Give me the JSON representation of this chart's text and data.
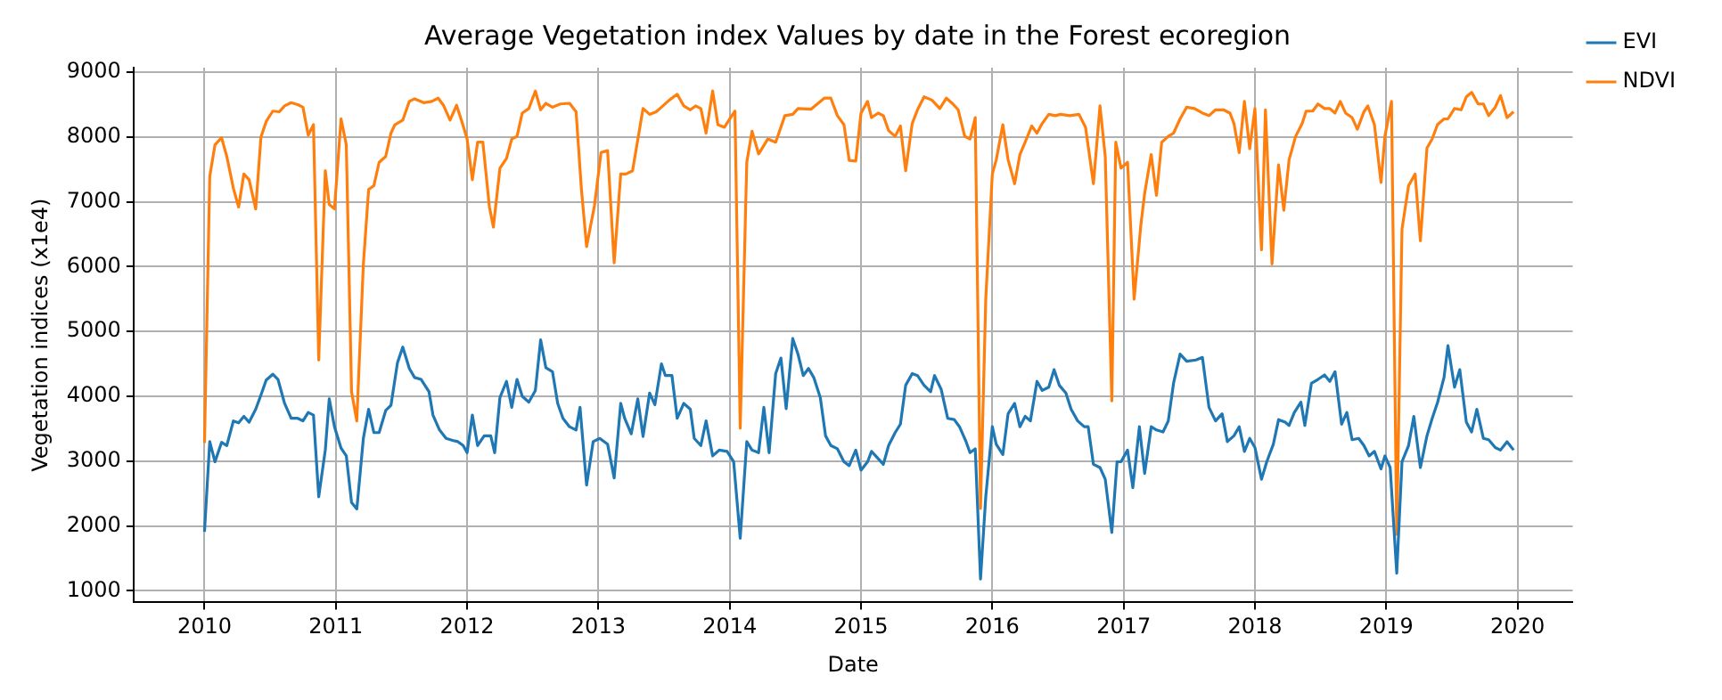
{
  "chart_data": {
    "type": "line",
    "title": "Average Vegetation index Values by date in the Forest ecoregion",
    "xlabel": "Date",
    "ylabel": "Vegetation indices (x1e4)",
    "xlim": [
      2009.46,
      2020.42
    ],
    "xticks": [
      2010,
      2011,
      2012,
      2013,
      2014,
      2015,
      2016,
      2017,
      2018,
      2019,
      2020
    ],
    "ylim": [
      820,
      9070
    ],
    "yticks": [
      1000,
      2000,
      3000,
      4000,
      5000,
      6000,
      7000,
      8000,
      9000
    ],
    "grid": true,
    "legend": "right",
    "series": [
      {
        "name": "EVI",
        "color": "#1f77b4",
        "x": [
          2010.0,
          2010.04,
          2010.08,
          2010.13,
          2010.17,
          2010.22,
          2010.26,
          2010.3,
          2010.34,
          2010.39,
          2010.43,
          2010.47,
          2010.52,
          2010.56,
          2010.61,
          2010.66,
          2010.71,
          2010.75,
          2010.79,
          2010.83,
          2010.87,
          2010.92,
          2010.95,
          2010.99,
          2011.04,
          2011.08,
          2011.12,
          2011.16,
          2011.21,
          2011.25,
          2011.29,
          2011.33,
          2011.38,
          2011.42,
          2011.47,
          2011.51,
          2011.56,
          2011.6,
          2011.65,
          2011.71,
          2011.74,
          2011.79,
          2011.84,
          2011.89,
          2011.93,
          2011.97,
          2012.0,
          2012.04,
          2012.08,
          2012.13,
          2012.18,
          2012.21,
          2012.25,
          2012.3,
          2012.34,
          2012.38,
          2012.42,
          2012.47,
          2012.52,
          2012.56,
          2012.6,
          2012.65,
          2012.69,
          2012.73,
          2012.78,
          2012.83,
          2012.86,
          2012.91,
          2012.96,
          2013.01,
          2013.07,
          2013.12,
          2013.17,
          2013.2,
          2013.25,
          2013.3,
          2013.34,
          2013.39,
          2013.43,
          2013.48,
          2013.51,
          2013.56,
          2013.6,
          2013.65,
          2013.7,
          2013.73,
          2013.78,
          2013.82,
          2013.87,
          2013.92,
          2013.98,
          2014.03,
          2014.08,
          2014.13,
          2014.17,
          2014.22,
          2014.26,
          2014.3,
          2014.35,
          2014.39,
          2014.43,
          2014.48,
          2014.52,
          2014.56,
          2014.6,
          2014.64,
          2014.69,
          2014.73,
          2014.77,
          2014.82,
          2014.87,
          2014.91,
          2014.96,
          2015.0,
          2015.05,
          2015.08,
          2015.13,
          2015.17,
          2015.21,
          2015.26,
          2015.3,
          2015.34,
          2015.39,
          2015.43,
          2015.48,
          2015.53,
          2015.56,
          2015.61,
          2015.66,
          2015.71,
          2015.75,
          2015.8,
          2015.83,
          2015.87,
          2015.91,
          2015.95,
          2016.0,
          2016.03,
          2016.08,
          2016.12,
          2016.17,
          2016.21,
          2016.25,
          2016.29,
          2016.34,
          2016.38,
          2016.43,
          2016.47,
          2016.51,
          2016.56,
          2016.6,
          2016.65,
          2016.7,
          2016.73,
          2016.77,
          2016.82,
          2016.86,
          2016.91,
          2016.95,
          2016.98,
          2017.03,
          2017.07,
          2017.12,
          2017.16,
          2017.21,
          2017.25,
          2017.3,
          2017.34,
          2017.38,
          2017.43,
          2017.48,
          2017.55,
          2017.6,
          2017.65,
          2017.7,
          2017.75,
          2017.79,
          2017.84,
          2017.88,
          2017.92,
          2017.96,
          2018.0,
          2018.05,
          2018.09,
          2018.14,
          2018.18,
          2018.23,
          2018.26,
          2018.3,
          2018.35,
          2018.38,
          2018.43,
          2018.48,
          2018.53,
          2018.57,
          2018.61,
          2018.66,
          2018.7,
          2018.74,
          2018.79,
          2018.83,
          2018.87,
          2018.91,
          2018.96,
          2018.99,
          2019.03,
          2019.08,
          2019.12,
          2019.17,
          2019.21,
          2019.26,
          2019.31,
          2019.35,
          2019.39,
          2019.44,
          2019.47,
          2019.52,
          2019.56,
          2019.61,
          2019.65,
          2019.69,
          2019.74,
          2019.78,
          2019.83,
          2019.87,
          2019.92,
          2019.97
        ],
        "values": [
          1910,
          3300,
          2990,
          3290,
          3240,
          3620,
          3590,
          3690,
          3600,
          3800,
          4020,
          4250,
          4340,
          4260,
          3890,
          3660,
          3660,
          3620,
          3750,
          3710,
          2450,
          3170,
          3960,
          3530,
          3200,
          3080,
          2360,
          2260,
          3350,
          3800,
          3440,
          3440,
          3780,
          3860,
          4520,
          4760,
          4430,
          4290,
          4260,
          4070,
          3710,
          3480,
          3350,
          3320,
          3300,
          3240,
          3130,
          3710,
          3240,
          3390,
          3390,
          3130,
          3980,
          4230,
          3830,
          4260,
          4000,
          3910,
          4090,
          4870,
          4440,
          4380,
          3890,
          3660,
          3530,
          3480,
          3830,
          2630,
          3300,
          3350,
          3260,
          2740,
          3890,
          3660,
          3420,
          3960,
          3380,
          4050,
          3870,
          4500,
          4320,
          4320,
          3660,
          3890,
          3800,
          3350,
          3240,
          3620,
          3080,
          3170,
          3150,
          2990,
          1810,
          3300,
          3170,
          3130,
          3830,
          3130,
          4350,
          4590,
          3810,
          4890,
          4650,
          4320,
          4430,
          4290,
          3980,
          3390,
          3240,
          3190,
          2990,
          2930,
          3170,
          2860,
          2990,
          3150,
          3040,
          2950,
          3240,
          3440,
          3570,
          4170,
          4350,
          4320,
          4170,
          4070,
          4320,
          4110,
          3660,
          3640,
          3530,
          3300,
          3130,
          3190,
          1180,
          2450,
          3530,
          3260,
          3100,
          3730,
          3890,
          3530,
          3690,
          3620,
          4230,
          4090,
          4140,
          4410,
          4170,
          4050,
          3800,
          3620,
          3530,
          3530,
          2950,
          2900,
          2720,
          1900,
          2990,
          2990,
          3170,
          2590,
          3530,
          2810,
          3530,
          3480,
          3450,
          3620,
          4200,
          4650,
          4540,
          4560,
          4600,
          3830,
          3620,
          3730,
          3300,
          3390,
          3530,
          3150,
          3350,
          3210,
          2720,
          2990,
          3260,
          3640,
          3600,
          3550,
          3750,
          3910,
          3550,
          4200,
          4260,
          4330,
          4230,
          4380,
          3570,
          3750,
          3330,
          3350,
          3240,
          3080,
          3150,
          2880,
          3080,
          2900,
          1270,
          2990,
          3240,
          3690,
          2900,
          3390,
          3660,
          3900,
          4290,
          4780,
          4140,
          4410,
          3600,
          3450,
          3800,
          3350,
          3330,
          3210,
          3170,
          3300,
          3170
        ]
      },
      {
        "name": "NDVI",
        "color": "#ff7f0e",
        "x": [
          2010.0,
          2010.04,
          2010.08,
          2010.13,
          2010.17,
          2010.22,
          2010.26,
          2010.3,
          2010.34,
          2010.39,
          2010.43,
          2010.47,
          2010.52,
          2010.57,
          2010.61,
          2010.66,
          2010.71,
          2010.75,
          2010.79,
          2010.83,
          2010.87,
          2010.92,
          2010.95,
          2010.99,
          2011.04,
          2011.08,
          2011.12,
          2011.16,
          2011.21,
          2011.25,
          2011.29,
          2011.33,
          2011.38,
          2011.42,
          2011.45,
          2011.51,
          2011.56,
          2011.6,
          2011.67,
          2011.73,
          2011.78,
          2011.82,
          2011.87,
          2011.92,
          2011.96,
          2012.0,
          2012.04,
          2012.08,
          2012.12,
          2012.17,
          2012.2,
          2012.25,
          2012.3,
          2012.34,
          2012.38,
          2012.42,
          2012.47,
          2012.52,
          2012.56,
          2012.6,
          2012.65,
          2012.71,
          2012.78,
          2012.83,
          2012.87,
          2012.91,
          2012.97,
          2013.02,
          2013.07,
          2013.12,
          2013.17,
          2013.21,
          2013.26,
          2013.34,
          2013.39,
          2013.44,
          2013.48,
          2013.54,
          2013.6,
          2013.65,
          2013.7,
          2013.74,
          2013.78,
          2013.82,
          2013.87,
          2013.91,
          2013.96,
          2014.0,
          2014.04,
          2014.08,
          2014.13,
          2014.17,
          2014.22,
          2014.29,
          2014.35,
          2014.42,
          2014.48,
          2014.52,
          2014.62,
          2014.72,
          2014.77,
          2014.82,
          2014.87,
          2014.91,
          2014.96,
          2015.0,
          2015.05,
          2015.08,
          2015.13,
          2015.17,
          2015.21,
          2015.26,
          2015.3,
          2015.34,
          2015.39,
          2015.43,
          2015.48,
          2015.54,
          2015.6,
          2015.65,
          2015.7,
          2015.74,
          2015.79,
          2015.83,
          2015.87,
          2015.91,
          2015.95,
          2016.0,
          2016.03,
          2016.08,
          2016.12,
          2016.17,
          2016.21,
          2016.25,
          2016.3,
          2016.34,
          2016.38,
          2016.43,
          2016.48,
          2016.52,
          2016.59,
          2016.66,
          2016.71,
          2016.77,
          2016.82,
          2016.86,
          2016.91,
          2016.94,
          2016.98,
          2017.03,
          2017.08,
          2017.13,
          2017.16,
          2017.21,
          2017.25,
          2017.29,
          2017.34,
          2017.38,
          2017.43,
          2017.48,
          2017.54,
          2017.6,
          2017.65,
          2017.7,
          2017.76,
          2017.81,
          2017.84,
          2017.88,
          2017.92,
          2017.96,
          2018.0,
          2018.05,
          2018.08,
          2018.13,
          2018.18,
          2018.22,
          2018.26,
          2018.31,
          2018.36,
          2018.39,
          2018.44,
          2018.48,
          2018.53,
          2018.57,
          2018.61,
          2018.65,
          2018.69,
          2018.74,
          2018.78,
          2018.83,
          2018.86,
          2018.91,
          2018.96,
          2018.99,
          2019.04,
          2019.08,
          2019.12,
          2019.17,
          2019.22,
          2019.26,
          2019.31,
          2019.35,
          2019.39,
          2019.44,
          2019.47,
          2019.52,
          2019.57,
          2019.61,
          2019.65,
          2019.7,
          2019.74,
          2019.78,
          2019.83,
          2019.87,
          2019.92,
          2019.97
        ],
        "values": [
          3280,
          7390,
          7880,
          7990,
          7700,
          7210,
          6920,
          7430,
          7340,
          6890,
          8000,
          8240,
          8400,
          8390,
          8480,
          8530,
          8500,
          8460,
          8030,
          8190,
          4560,
          7480,
          6960,
          6890,
          8280,
          7880,
          4070,
          3620,
          6040,
          7190,
          7250,
          7610,
          7700,
          8060,
          8190,
          8260,
          8550,
          8590,
          8530,
          8550,
          8600,
          8490,
          8260,
          8490,
          8240,
          7970,
          7340,
          7920,
          7920,
          6920,
          6610,
          7520,
          7670,
          7970,
          8010,
          8370,
          8440,
          8710,
          8420,
          8520,
          8460,
          8510,
          8520,
          8390,
          7210,
          6310,
          6940,
          7760,
          7790,
          6060,
          7430,
          7430,
          7480,
          8440,
          8350,
          8390,
          8460,
          8570,
          8660,
          8480,
          8420,
          8480,
          8440,
          8060,
          8710,
          8190,
          8150,
          8280,
          8400,
          3510,
          7610,
          8090,
          7740,
          7970,
          7920,
          8330,
          8350,
          8440,
          8430,
          8600,
          8600,
          8330,
          8190,
          7640,
          7630,
          8370,
          8550,
          8300,
          8370,
          8330,
          8100,
          8010,
          8170,
          7480,
          8210,
          8420,
          8620,
          8570,
          8440,
          8600,
          8510,
          8420,
          8010,
          7970,
          8300,
          2270,
          5500,
          7430,
          7650,
          8190,
          7650,
          7280,
          7730,
          7920,
          8170,
          8060,
          8210,
          8350,
          8330,
          8350,
          8330,
          8350,
          8150,
          7280,
          8480,
          7700,
          3930,
          7920,
          7520,
          7610,
          5500,
          6620,
          7130,
          7730,
          7100,
          7920,
          8010,
          8060,
          8280,
          8460,
          8440,
          8370,
          8330,
          8420,
          8420,
          8370,
          8210,
          7760,
          8550,
          7820,
          8440,
          6260,
          8420,
          6040,
          7570,
          6870,
          7650,
          8010,
          8210,
          8400,
          8400,
          8510,
          8440,
          8440,
          8370,
          8550,
          8370,
          8300,
          8120,
          8390,
          8480,
          8190,
          7300,
          8010,
          8550,
          1870,
          6580,
          7250,
          7430,
          6400,
          7830,
          7970,
          8190,
          8280,
          8280,
          8440,
          8420,
          8620,
          8690,
          8510,
          8510,
          8330,
          8460,
          8640,
          8300,
          8390
        ]
      }
    ]
  }
}
